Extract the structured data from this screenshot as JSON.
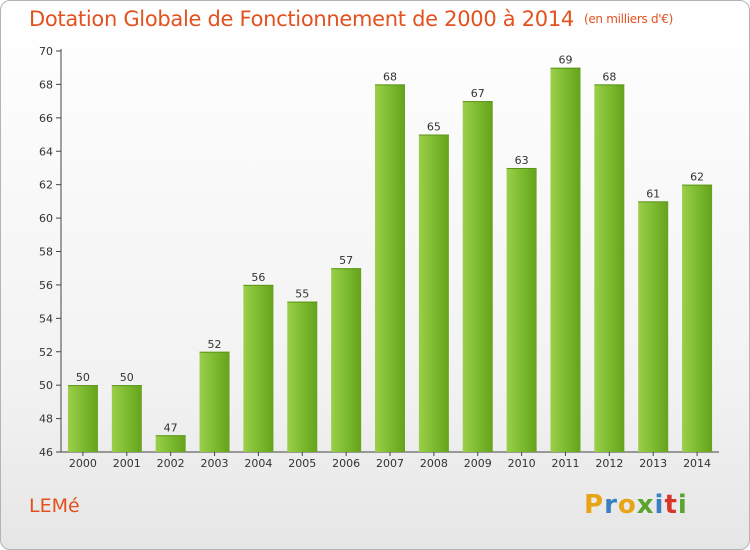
{
  "header": {
    "title": "Dotation Globale de Fonctionnement de 2000 à 2014",
    "unit": "(en milliers d'€)"
  },
  "footer": {
    "commune": "LEMé",
    "brand": [
      "P",
      "r",
      "o",
      "x",
      "i",
      "t",
      "i"
    ],
    "brand_colors": [
      "#e8a417",
      "#3a7fc1",
      "#e8a417",
      "#59a530",
      "#3a7fc1",
      "#d9342b",
      "#59a530"
    ]
  },
  "chart_data": {
    "type": "bar",
    "title": "Dotation Globale de Fonctionnement de 2000 à 2014",
    "subtitle": "(en milliers d'€)",
    "categories": [
      "2000",
      "2001",
      "2002",
      "2003",
      "2004",
      "2005",
      "2006",
      "2007",
      "2008",
      "2009",
      "2010",
      "2011",
      "2012",
      "2013",
      "2014"
    ],
    "values": [
      50,
      50,
      47,
      52,
      56,
      55,
      57,
      68,
      65,
      67,
      63,
      69,
      68,
      61,
      62
    ],
    "ylim": [
      46,
      70
    ],
    "yticks": [
      46,
      48,
      50,
      52,
      54,
      56,
      58,
      60,
      62,
      64,
      66,
      68,
      70
    ],
    "grid": false,
    "bar_color": "#7cbb2f",
    "bar_color_light": "#9ccf4a",
    "bar_color_dark": "#66a21c"
  }
}
